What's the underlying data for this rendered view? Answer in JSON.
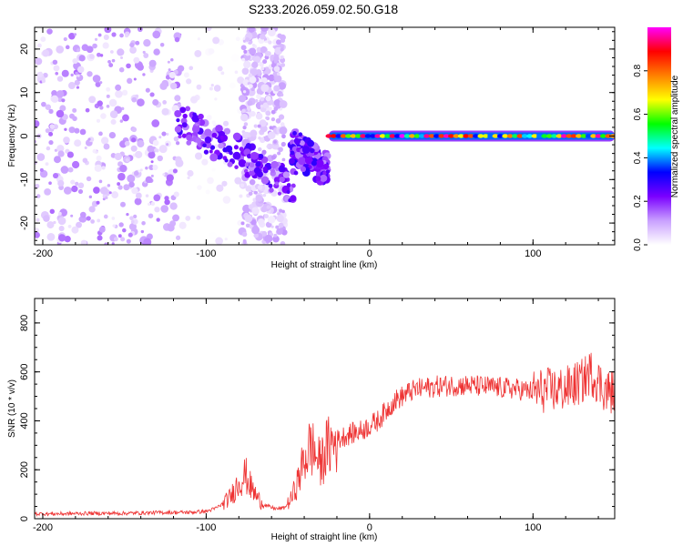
{
  "title": "S233.2026.059.02.50.G18",
  "chart_data": [
    {
      "type": "heatmap",
      "title": "S233.2026.059.02.50.G18",
      "xlabel": "Height of straight line (km)",
      "ylabel": "Frequency (Hz)",
      "xlim": [
        -205,
        150
      ],
      "ylim": [
        -25,
        25
      ],
      "xticks": [
        -200,
        -100,
        0,
        100
      ],
      "yticks": [
        -20,
        -10,
        0,
        10,
        20
      ],
      "colorbar": {
        "label": "Normalized spectral amplitude",
        "range": [
          0.0,
          1.0
        ],
        "ticks": [
          0.0,
          0.2,
          0.4,
          0.6,
          0.8
        ],
        "tick_labels": [
          "0.0",
          "0.2",
          "0.4",
          "0.6",
          "0.8"
        ],
        "colors": [
          "#ffffff",
          "#c9a0ff",
          "#7a00ff",
          "#0000ff",
          "#00ffff",
          "#00ff00",
          "#ffff00",
          "#ff8000",
          "#ff0000",
          "#ff00ff"
        ]
      },
      "features": [
        {
          "region": "noise",
          "x": [
            -205,
            -115
          ],
          "freq": [
            -25,
            25
          ],
          "amplitude": [
            0.02,
            0.15
          ]
        },
        {
          "region": "noise",
          "x": [
            -115,
            -78
          ],
          "freq": [
            -25,
            25
          ],
          "amplitude": [
            0.0,
            0.05
          ]
        },
        {
          "region": "noise",
          "x": [
            -78,
            -52
          ],
          "freq": [
            -25,
            25
          ],
          "amplitude": [
            0.02,
            0.12
          ]
        },
        {
          "region": "transition",
          "x": [
            -118,
            -45
          ],
          "freq_center": [
            4,
            -12
          ],
          "amplitude": [
            0.12,
            0.28
          ]
        },
        {
          "region": "transition",
          "x": [
            -48,
            -25
          ],
          "freq_center": [
            -2,
            -8
          ],
          "amplitude": [
            0.12,
            0.3
          ]
        },
        {
          "region": "carrier",
          "x": [
            -25,
            150
          ],
          "freq": 0,
          "amplitude": [
            0.3,
            1.0
          ]
        }
      ]
    },
    {
      "type": "line",
      "xlabel": "Height of straight line (km)",
      "ylabel": "SNR (10 * v/v)",
      "xlim": [
        -205,
        150
      ],
      "ylim": [
        0,
        900
      ],
      "xticks": [
        -200,
        -100,
        0,
        100
      ],
      "yticks": [
        0,
        200,
        400,
        600,
        800
      ],
      "color": "#ee3333",
      "series": [
        {
          "name": "SNR",
          "x": [
            -205,
            -190,
            -170,
            -150,
            -130,
            -110,
            -100,
            -95,
            -90,
            -85,
            -80,
            -76,
            -72,
            -68,
            -64,
            -60,
            -56,
            -52,
            -48,
            -44,
            -40,
            -36,
            -33,
            -30,
            -27,
            -24,
            -20,
            -15,
            -10,
            -5,
            0,
            5,
            10,
            15,
            20,
            25,
            30,
            40,
            50,
            60,
            70,
            80,
            90,
            100,
            110,
            120,
            130,
            135,
            140,
            145,
            150
          ],
          "y": [
            20,
            20,
            22,
            22,
            25,
            26,
            30,
            40,
            60,
            90,
            150,
            180,
            120,
            80,
            55,
            45,
            40,
            45,
            80,
            150,
            240,
            300,
            260,
            220,
            280,
            300,
            320,
            340,
            350,
            360,
            380,
            400,
            440,
            480,
            500,
            520,
            530,
            540,
            545,
            545,
            540,
            535,
            530,
            520,
            525,
            530,
            560,
            600,
            560,
            520,
            520
          ]
        }
      ]
    }
  ]
}
